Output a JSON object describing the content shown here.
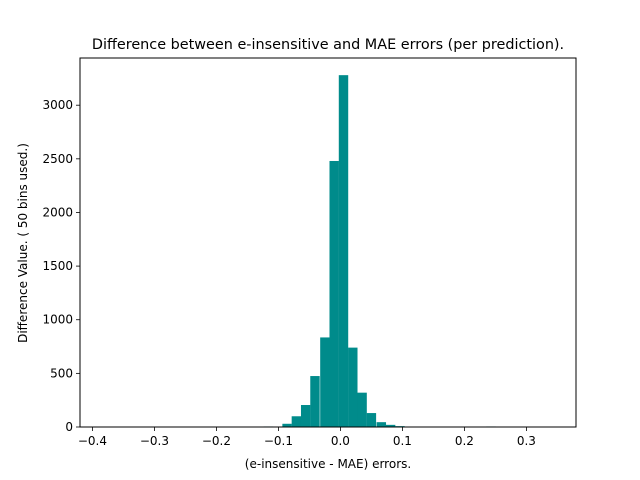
{
  "chart_data": {
    "type": "bar",
    "title": "Difference between  e-insensitive and MAE errors (per prediction).",
    "xlabel": "(e-insensitive - MAE) errors.",
    "ylabel": "Difference Value. ( 50 bins used.)",
    "xlim": [
      -0.42,
      0.38
    ],
    "ylim": [
      0,
      3440
    ],
    "xticks": [
      -0.4,
      -0.3,
      -0.2,
      -0.1,
      0.0,
      0.1,
      0.2,
      0.3
    ],
    "xtick_labels": [
      "−0.4",
      "−0.3",
      "−0.2",
      "−0.1",
      "0.0",
      "0.1",
      "0.2",
      "0.3"
    ],
    "yticks": [
      0,
      500,
      1000,
      1500,
      2000,
      2500,
      3000
    ],
    "ytick_labels": [
      "0",
      "500",
      "1000",
      "1500",
      "2000",
      "2500",
      "3000"
    ],
    "bin_width": 0.0152,
    "bar_color": "#008b8b",
    "bins": [
      {
        "x": -0.116,
        "value": 5
      },
      {
        "x": -0.086,
        "value": 30
      },
      {
        "x": -0.071,
        "value": 100
      },
      {
        "x": -0.056,
        "value": 205
      },
      {
        "x": -0.041,
        "value": 475
      },
      {
        "x": -0.025,
        "value": 835
      },
      {
        "x": -0.01,
        "value": 2480
      },
      {
        "x": 0.005,
        "value": 3280
      },
      {
        "x": 0.02,
        "value": 740
      },
      {
        "x": 0.035,
        "value": 320
      },
      {
        "x": 0.05,
        "value": 130
      },
      {
        "x": 0.066,
        "value": 45
      },
      {
        "x": 0.081,
        "value": 20
      },
      {
        "x": 0.096,
        "value": 8
      },
      {
        "x": 0.243,
        "value": 5
      }
    ]
  }
}
